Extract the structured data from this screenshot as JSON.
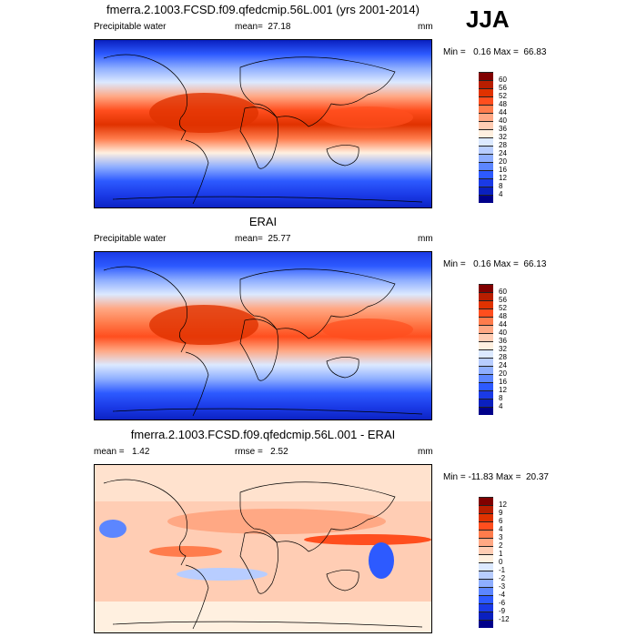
{
  "season": "JJA",
  "panels": [
    {
      "title": "fmerra.2.1003.FCSD.f09.qfedcmip.56L.001 (yrs 2001-2014)",
      "left": "Precipitable water",
      "center": "mean=  27.18",
      "right": "mm",
      "stats": "Min =   0.16 Max =  66.83"
    },
    {
      "title": "ERAI",
      "left": "Precipitable water",
      "center": "mean=  25.77",
      "right": "mm",
      "stats": "Min =   0.16 Max =  66.13"
    },
    {
      "title": "fmerra.2.1003.FCSD.f09.qfedcmip.56L.001 - ERAI",
      "left": "mean =   1.42",
      "center": "rmse =   2.52",
      "right": "mm",
      "stats": "Min = -11.83 Max =  20.37"
    }
  ],
  "chart_data": [
    {
      "type": "heatmap",
      "title": "fmerra.2.1003.FCSD.f09.qfedcmip.56L.001 (yrs 2001-2014)",
      "variable": "Precipitable water",
      "units": "mm",
      "mean": 27.18,
      "min": 0.16,
      "max": 66.83,
      "levels": [
        "60",
        "56",
        "52",
        "48",
        "44",
        "40",
        "36",
        "32",
        "28",
        "24",
        "20",
        "16",
        "12",
        "8",
        "4"
      ]
    },
    {
      "type": "heatmap",
      "title": "ERAI",
      "variable": "Precipitable water",
      "units": "mm",
      "mean": 25.77,
      "min": 0.16,
      "max": 66.13,
      "levels": [
        "60",
        "56",
        "52",
        "48",
        "44",
        "40",
        "36",
        "32",
        "28",
        "24",
        "20",
        "16",
        "12",
        "8",
        "4"
      ]
    },
    {
      "type": "heatmap",
      "title": "fmerra.2.1003.FCSD.f09.qfedcmip.56L.001 - ERAI",
      "units": "mm",
      "mean": 1.42,
      "rmse": 2.52,
      "min": -11.83,
      "max": 20.37,
      "levels": [
        "12",
        "9",
        "6",
        "4",
        "3",
        "2",
        "1",
        "0",
        "-1",
        "-2",
        "-3",
        "-4",
        "-6",
        "-9",
        "-12"
      ]
    }
  ],
  "colors": [
    "#800000",
    "#b81e00",
    "#e03200",
    "#ff4e1e",
    "#ff7c4c",
    "#ffa884",
    "#ffcdb4",
    "#fff0e0",
    "#dce9ff",
    "#b8cdff",
    "#8eaeff",
    "#5c86ff",
    "#2d5aff",
    "#1a3ae6",
    "#0a20bf",
    "#00008a"
  ]
}
